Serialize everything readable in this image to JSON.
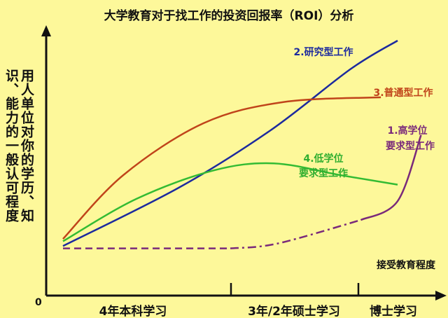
{
  "chart_data": {
    "type": "line",
    "title": "大学教育对于找工作的投资回报率（ROI）分析",
    "ylabel_lines": [
      "用人单位对你的学历、知",
      "识、能力的一般认可程度"
    ],
    "xlabel": "接受教育程度",
    "origin_label": "0",
    "x_ticks": [
      "4年本科学习",
      "3年/2年硕士学习",
      "博士学习"
    ],
    "x_unit_note": "x and y are relative positions on unlabeled axes (0..1)",
    "series": [
      {
        "name": "2.研究型工作",
        "color": "#1c2a9e",
        "style": "solid",
        "points": [
          [
            0.0,
            0.13
          ],
          [
            0.35,
            0.38
          ],
          [
            0.62,
            0.62
          ],
          [
            0.86,
            0.88
          ],
          [
            1.0,
            1.0
          ]
        ]
      },
      {
        "name": "3.普通型工作",
        "color": "#c0441a",
        "style": "solid",
        "points": [
          [
            0.0,
            0.16
          ],
          [
            0.18,
            0.43
          ],
          [
            0.42,
            0.65
          ],
          [
            0.66,
            0.74
          ],
          [
            0.95,
            0.76
          ]
        ]
      },
      {
        "name": "4.低学位要求型工作",
        "color": "#33bb33",
        "style": "solid",
        "points": [
          [
            0.0,
            0.15
          ],
          [
            0.22,
            0.33
          ],
          [
            0.45,
            0.45
          ],
          [
            0.63,
            0.48
          ],
          [
            0.83,
            0.43
          ],
          [
            1.0,
            0.39
          ]
        ]
      },
      {
        "name": "1.高学位要求型工作",
        "color": "#7a2a7a",
        "style": "dashed",
        "points": [
          [
            0.0,
            0.12
          ],
          [
            0.5,
            0.12
          ],
          [
            0.64,
            0.14
          ],
          [
            0.89,
            0.24
          ],
          [
            1.0,
            0.32
          ],
          [
            1.07,
            0.6
          ]
        ]
      }
    ],
    "labels": {
      "s2": "2.研究型工作",
      "s3": "3.普通型工作",
      "s4_line1": "4.低学位",
      "s4_line2": "要求型工作",
      "s1_line1": "1.高学位",
      "s1_line2": "要求型工作"
    },
    "colors": {
      "background": "#fdf89a",
      "axis": "#111111",
      "title": "#111111"
    }
  }
}
